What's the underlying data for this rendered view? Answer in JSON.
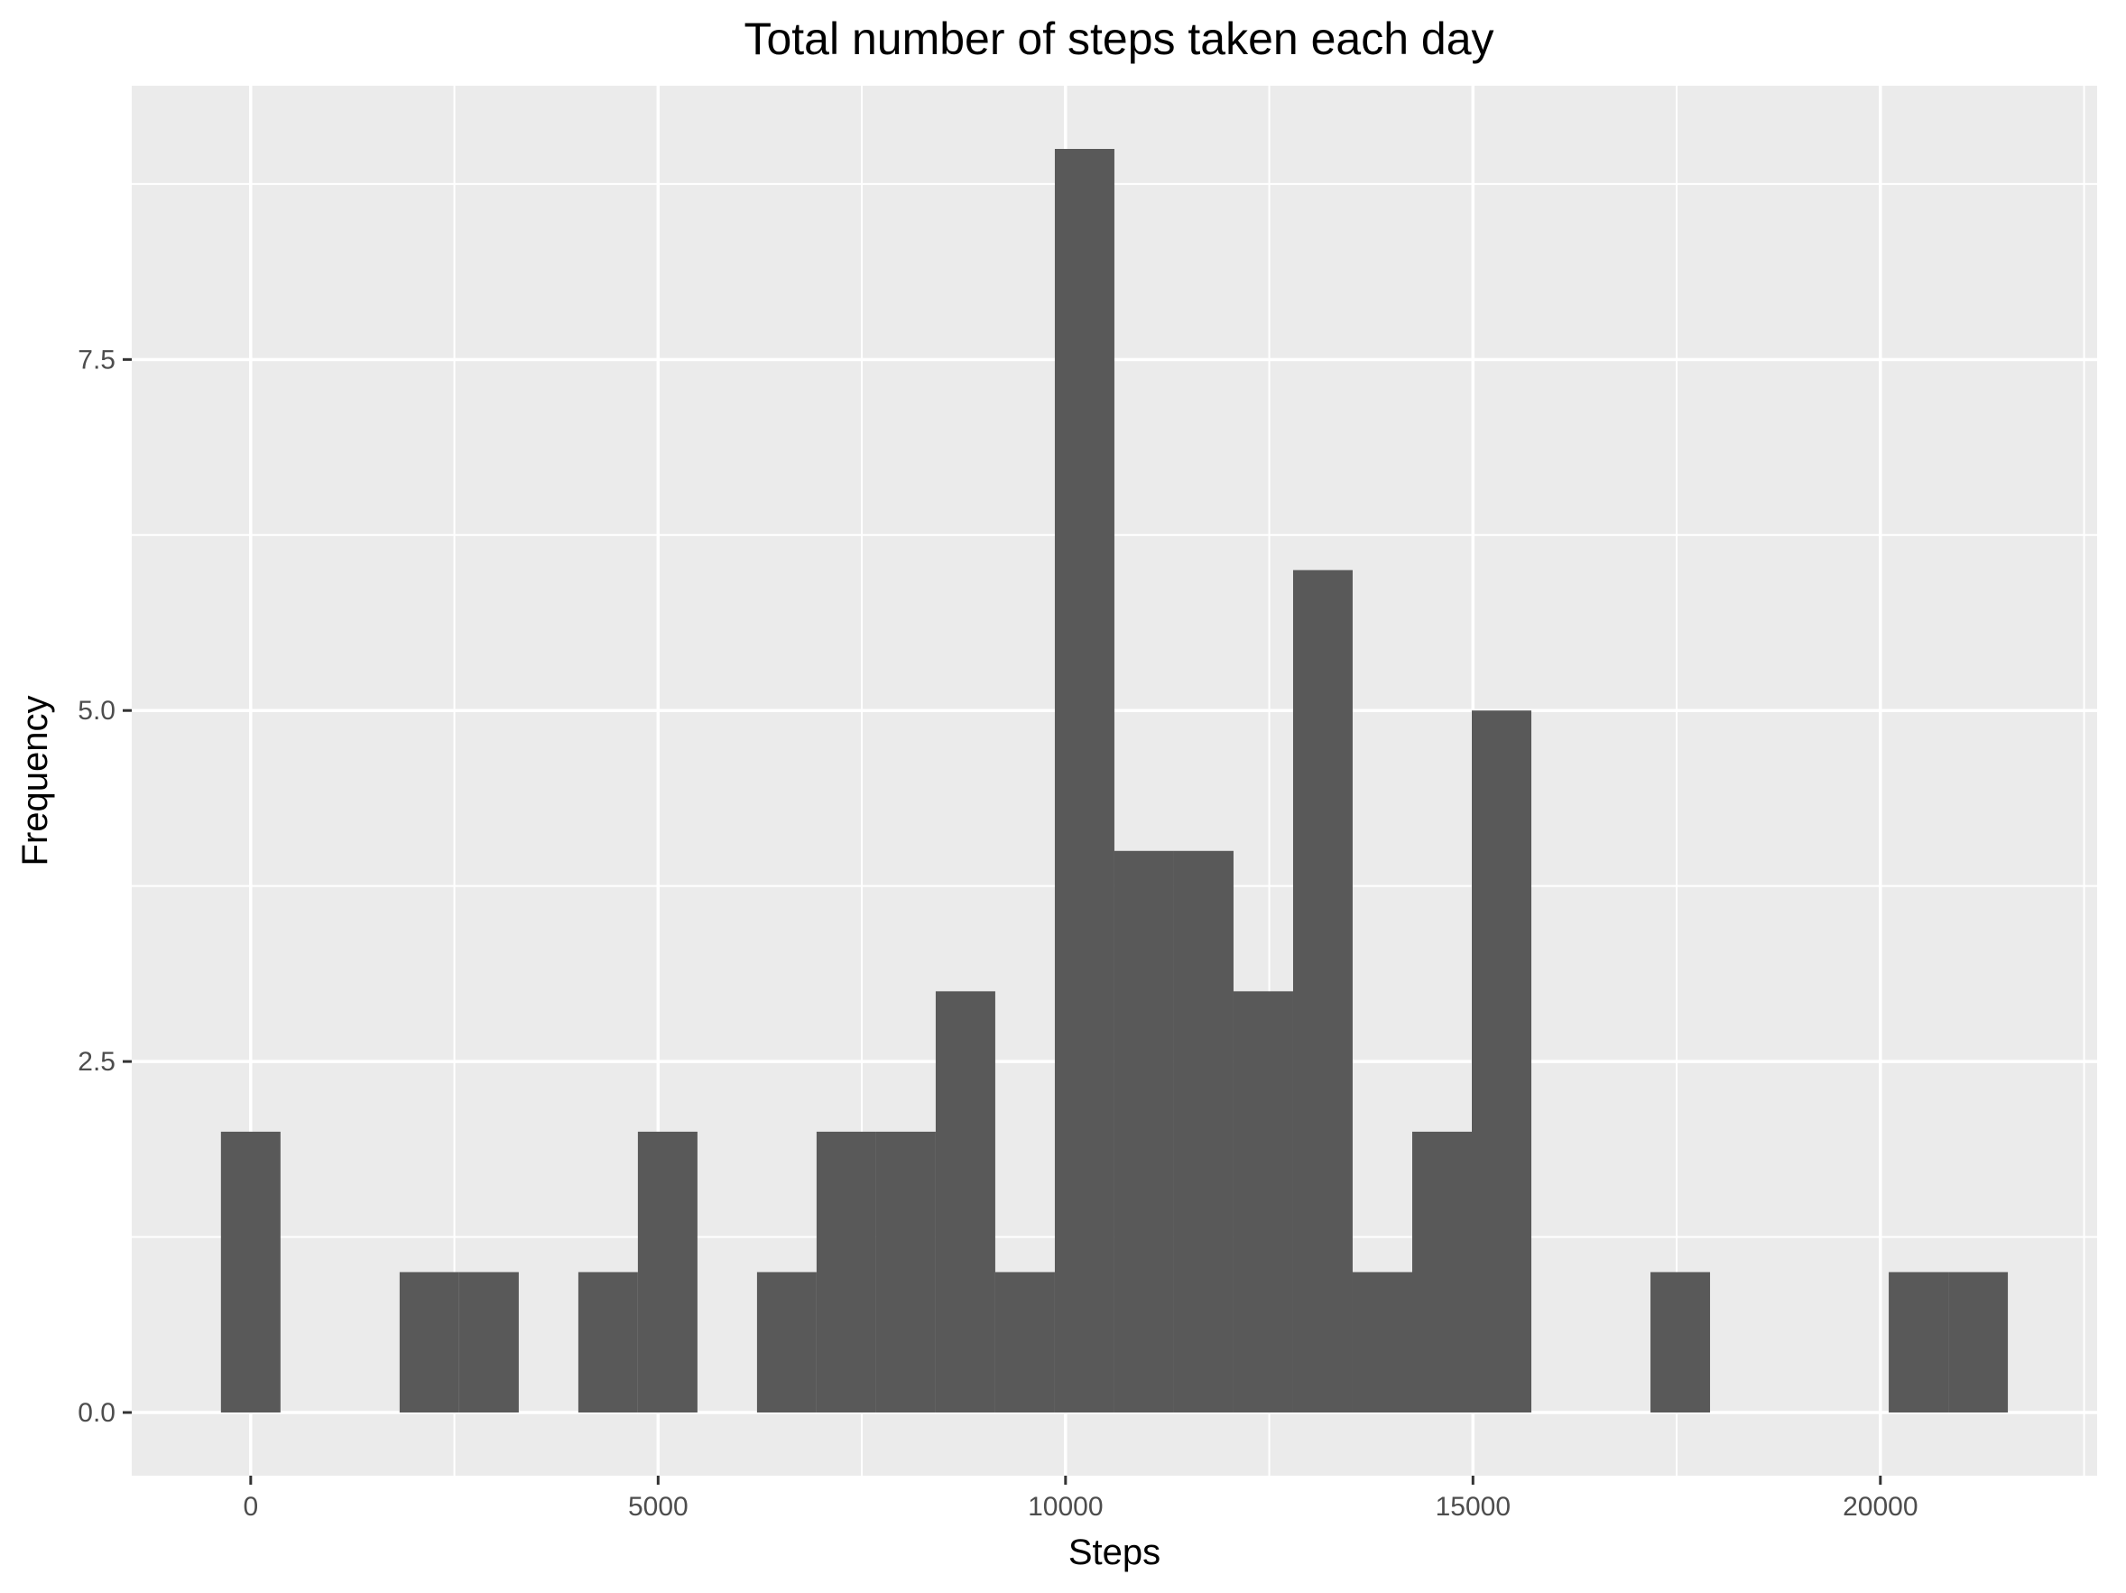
{
  "chart_data": {
    "type": "bar",
    "subtype": "histogram",
    "title": "Total number of steps taken each day",
    "xlabel": "Steps",
    "ylabel": "Frequency",
    "xlim": [
      -1460,
      22660
    ],
    "ylim": [
      -0.45,
      9.45
    ],
    "x_ticks": [
      0,
      5000,
      10000,
      15000,
      20000
    ],
    "x_tick_labels": [
      "0",
      "5000",
      "10000",
      "15000",
      "20000"
    ],
    "y_ticks": [
      0,
      2.5,
      5,
      7.5
    ],
    "y_tick_labels": [
      "0.0",
      "2.5",
      "5.0",
      "7.5"
    ],
    "bin_width": 731,
    "bin_centers": [
      0,
      2193,
      2924,
      4386,
      5117,
      6579,
      7310,
      8041,
      8772,
      9503,
      10234,
      10965,
      11696,
      12427,
      13158,
      13889,
      14620,
      15351,
      17544,
      20468,
      21199
    ],
    "values": [
      2,
      1,
      1,
      1,
      2,
      1,
      2,
      2,
      3,
      1,
      9,
      4,
      4,
      3,
      6,
      1,
      2,
      5,
      1,
      1,
      1
    ],
    "grid": true,
    "colors": {
      "panel": "#ebebeb",
      "grid": "#ffffff",
      "bar": "#595959",
      "tick": "#333333",
      "tick_label": "#4d4d4d"
    }
  }
}
